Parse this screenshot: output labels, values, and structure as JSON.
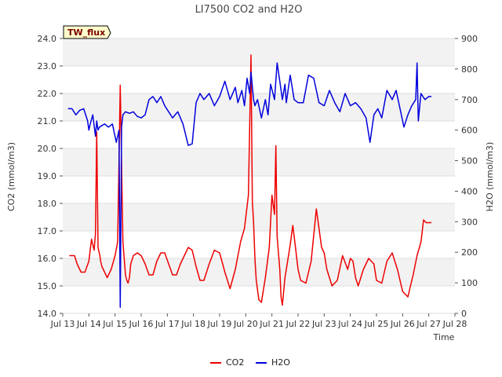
{
  "chart_data": {
    "type": "line",
    "title": "LI7500 CO2 and H2O",
    "badge": "TW_flux",
    "xlabel": "Time",
    "ylabel_left": "CO2 (mmol/m3)",
    "ylabel_right": "H2O (mmol/m3)",
    "ylim_left": [
      14.0,
      24.0
    ],
    "ylim_right": [
      0,
      900
    ],
    "xlim": [
      13,
      28
    ],
    "y_ticks_left": [
      "14.0",
      "15.0",
      "16.0",
      "17.0",
      "18.0",
      "19.0",
      "20.0",
      "21.0",
      "22.0",
      "23.0",
      "24.0"
    ],
    "y_ticks_right": [
      "0",
      "100",
      "200",
      "300",
      "400",
      "500",
      "600",
      "700",
      "800",
      "900"
    ],
    "x_ticks": [
      "Jul 13",
      "Jul 14",
      "Jul 15",
      "Jul 16",
      "Jul 17",
      "Jul 18",
      "Jul 19",
      "Jul 20",
      "Jul 21",
      "Jul 22",
      "Jul 23",
      "Jul 24",
      "Jul 25",
      "Jul 26",
      "Jul 27",
      "Jul 28"
    ],
    "legend_position": "bottom-center",
    "series": [
      {
        "name": "CO2",
        "axis": "left",
        "color": "#ee0000",
        "x": [
          13.25,
          13.45,
          13.55,
          13.7,
          13.85,
          14.0,
          14.1,
          14.2,
          14.25,
          14.3,
          14.35,
          14.42,
          14.45,
          14.5,
          14.6,
          14.7,
          14.85,
          15.0,
          15.1,
          15.2,
          15.3,
          15.4,
          15.45,
          15.5,
          15.55,
          15.6,
          15.7,
          15.85,
          16.0,
          16.15,
          16.3,
          16.45,
          16.6,
          16.75,
          16.9,
          17.05,
          17.2,
          17.35,
          17.5,
          17.65,
          17.8,
          17.95,
          18.1,
          18.25,
          18.4,
          18.6,
          18.8,
          19.0,
          19.2,
          19.4,
          19.6,
          19.8,
          19.95,
          20.1,
          20.2,
          20.25,
          20.3,
          20.35,
          20.4,
          20.5,
          20.6,
          20.75,
          20.9,
          21.0,
          21.1,
          21.15,
          21.2,
          21.3,
          21.35,
          21.4,
          21.5,
          21.6,
          21.7,
          21.8,
          21.9,
          22.0,
          22.1,
          22.3,
          22.5,
          22.7,
          22.9,
          23.0,
          23.1,
          23.3,
          23.5,
          23.7,
          23.9,
          24.0,
          24.1,
          24.2,
          24.3,
          24.5,
          24.7,
          24.9,
          25.0,
          25.2,
          25.4,
          25.6,
          25.8,
          26.0,
          26.2,
          26.4,
          26.55,
          26.7,
          26.8,
          26.9,
          27.0,
          27.1
        ],
        "values": [
          16.1,
          16.1,
          15.8,
          15.5,
          15.5,
          15.9,
          16.7,
          16.3,
          16.9,
          20.6,
          16.4,
          16.1,
          15.9,
          15.7,
          15.5,
          15.3,
          15.6,
          16.1,
          16.6,
          22.3,
          16.6,
          15.4,
          15.2,
          15.1,
          15.3,
          15.8,
          16.1,
          16.2,
          16.1,
          15.8,
          15.4,
          15.4,
          15.9,
          16.2,
          16.2,
          15.8,
          15.4,
          15.4,
          15.8,
          16.1,
          16.4,
          16.3,
          15.7,
          15.2,
          15.2,
          15.8,
          16.3,
          16.2,
          15.5,
          14.9,
          15.6,
          16.6,
          17.1,
          18.3,
          23.4,
          18.1,
          17.3,
          16.0,
          15.2,
          14.5,
          14.4,
          15.3,
          16.4,
          18.3,
          17.6,
          20.1,
          16.8,
          15.6,
          14.6,
          14.3,
          15.3,
          15.9,
          16.5,
          17.2,
          16.4,
          15.6,
          15.2,
          15.1,
          15.9,
          17.8,
          16.4,
          16.2,
          15.6,
          15.0,
          15.2,
          16.1,
          15.6,
          16.0,
          15.9,
          15.3,
          15.0,
          15.6,
          16.0,
          15.8,
          15.2,
          15.1,
          15.9,
          16.2,
          15.6,
          14.8,
          14.6,
          15.4,
          16.1,
          16.6,
          17.4,
          17.3,
          17.3,
          17.3
        ]
      },
      {
        "name": "H2O",
        "axis": "right",
        "color": "#0000dd",
        "x": [
          13.2,
          13.35,
          13.5,
          13.65,
          13.8,
          13.95,
          14.0,
          14.05,
          14.15,
          14.25,
          14.3,
          14.35,
          14.4,
          14.5,
          14.6,
          14.75,
          14.9,
          15.05,
          15.15,
          15.2,
          15.25,
          15.3,
          15.4,
          15.55,
          15.7,
          15.85,
          16.0,
          16.15,
          16.3,
          16.45,
          16.6,
          16.75,
          16.9,
          17.05,
          17.2,
          17.4,
          17.6,
          17.8,
          17.95,
          18.1,
          18.25,
          18.4,
          18.6,
          18.8,
          19.0,
          19.2,
          19.4,
          19.6,
          19.7,
          19.85,
          19.95,
          20.05,
          20.15,
          20.2,
          20.3,
          20.35,
          20.45,
          20.6,
          20.75,
          20.85,
          20.95,
          21.1,
          21.2,
          21.3,
          21.4,
          21.5,
          21.55,
          21.6,
          21.7,
          21.85,
          22.0,
          22.2,
          22.4,
          22.6,
          22.8,
          23.0,
          23.2,
          23.4,
          23.6,
          23.8,
          24.0,
          24.2,
          24.4,
          24.6,
          24.75,
          24.9,
          25.05,
          25.2,
          25.4,
          25.6,
          25.75,
          25.9,
          26.05,
          26.2,
          26.35,
          26.5,
          26.55,
          26.6,
          26.7,
          26.85,
          27.0,
          27.1
        ],
        "values": [
          670,
          670,
          650,
          665,
          670,
          630,
          600,
          620,
          650,
          580,
          630,
          600,
          610,
          615,
          620,
          610,
          620,
          560,
          600,
          20,
          610,
          650,
          660,
          655,
          660,
          645,
          640,
          650,
          700,
          710,
          690,
          710,
          680,
          660,
          640,
          660,
          620,
          550,
          555,
          690,
          720,
          700,
          720,
          680,
          710,
          760,
          700,
          740,
          690,
          730,
          680,
          770,
          720,
          790,
          700,
          680,
          700,
          640,
          700,
          650,
          750,
          700,
          820,
          760,
          700,
          750,
          690,
          720,
          780,
          700,
          690,
          690,
          780,
          770,
          690,
          680,
          730,
          690,
          660,
          720,
          680,
          690,
          670,
          640,
          560,
          650,
          670,
          640,
          730,
          700,
          730,
          670,
          610,
          650,
          680,
          700,
          820,
          630,
          720,
          700,
          710,
          710
        ]
      }
    ]
  }
}
